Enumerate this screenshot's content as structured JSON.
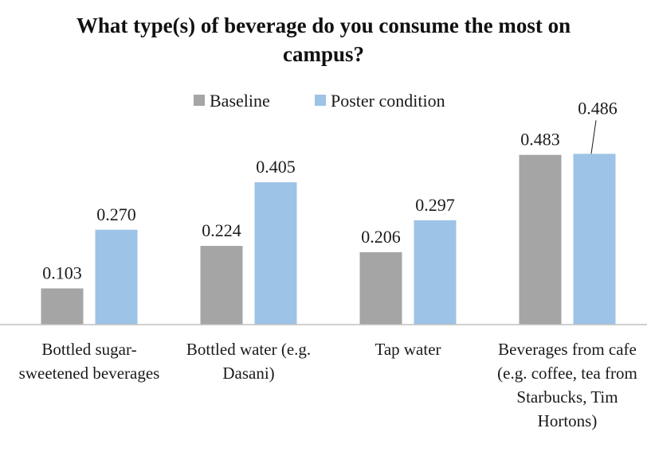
{
  "chart_data": {
    "type": "bar",
    "title": "What type(s) of beverage do you consume the most on campus?",
    "categories": [
      "Bottled sugar-sweetened beverages",
      "Bottled water (e.g. Dasani)",
      "Tap water",
      "Beverages from cafe (e.g. coffee, tea from Starbucks, Tim Hortons)"
    ],
    "series": [
      {
        "name": "Baseline",
        "color": "#a5a5a5",
        "values": [
          0.103,
          0.224,
          0.206,
          0.483
        ],
        "value_labels": [
          "0.103",
          "0.224",
          "0.206",
          "0.483"
        ]
      },
      {
        "name": "Poster condition",
        "color": "#9dc3e6",
        "values": [
          0.27,
          0.405,
          0.297,
          0.486
        ],
        "value_labels": [
          "0.270",
          "0.405",
          "0.297",
          "0.486"
        ]
      }
    ],
    "ylim": [
      0,
      0.6
    ],
    "legend": "top"
  }
}
